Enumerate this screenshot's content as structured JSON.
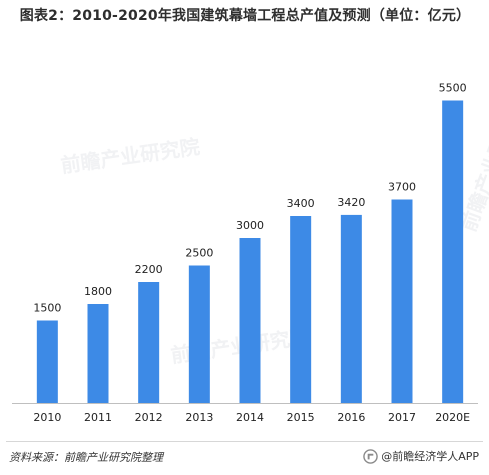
{
  "title": "图表2：2010-2020年我国建筑幕墙工程总产值及预测（单位：亿元）",
  "source": "资料来源：前瞻产业研究院整理",
  "brand": "@前瞻经济学人APP",
  "watermark": "前瞻产业研究院",
  "colors": {
    "bar": "#3d8ae6",
    "axis": "#bfbfbf"
  },
  "chart_data": {
    "type": "bar",
    "title": "图表2：2010-2020年我国建筑幕墙工程总产值及预测（单位：亿元）",
    "categories": [
      "2010",
      "2011",
      "2012",
      "2013",
      "2014",
      "2015",
      "2016",
      "2017",
      "2020E"
    ],
    "values": [
      1500,
      1800,
      2200,
      2500,
      3000,
      3400,
      3420,
      3700,
      5500
    ],
    "ylim": [
      0,
      5800
    ],
    "grid": false,
    "legend": "none",
    "xlabel": "",
    "ylabel": ""
  }
}
